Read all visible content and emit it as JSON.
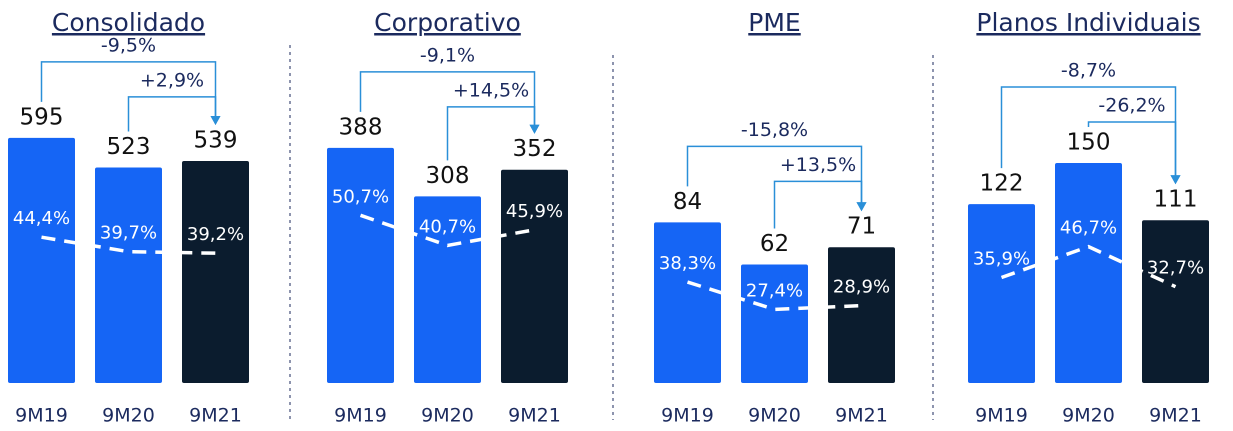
{
  "chart_data": [
    {
      "type": "bar",
      "title": "Consolidado",
      "categories": [
        "9M19",
        "9M20",
        "9M21"
      ],
      "series": [
        {
          "colors": [
            "#1565f5",
            "#1565f5",
            "#0b1c2e"
          ],
          "values": [
            595,
            523,
            539
          ]
        },
        {
          "type": "line",
          "axis": "y2",
          "color": "#ffffff",
          "values": [
            44.4,
            39.7,
            39.2
          ],
          "value_labels": [
            "44,4%",
            "39,7%",
            "39,2%"
          ]
        }
      ],
      "annotations": [
        "-9,5%",
        "+2,9%"
      ],
      "ylim": [
        0,
        687
      ],
      "y2lim": [
        -3,
        89
      ]
    },
    {
      "type": "bar",
      "title": "Corporativo",
      "categories": [
        "9M19",
        "9M20",
        "9M21"
      ],
      "series": [
        {
          "colors": [
            "#1565f5",
            "#1565f5",
            "#0b1c2e"
          ],
          "values": [
            388,
            308,
            352
          ]
        },
        {
          "type": "line",
          "axis": "y2",
          "color": "#ffffff",
          "values": [
            50.7,
            40.7,
            45.9
          ],
          "value_labels": [
            "50,7%",
            "40,7%",
            "45,9%"
          ]
        }
      ],
      "annotations": [
        "-9,1%",
        "+14,5%"
      ],
      "ylim": [
        0,
        467
      ],
      "y2lim": [
        -5,
        89
      ]
    },
    {
      "type": "bar",
      "title": "PME",
      "categories": [
        "9M19",
        "9M20",
        "9M21"
      ],
      "series": [
        {
          "colors": [
            "#1565f5",
            "#1565f5",
            "#0b1c2e"
          ],
          "values": [
            84,
            62,
            71
          ]
        },
        {
          "type": "line",
          "axis": "y2",
          "color": "#ffffff",
          "values": [
            38.3,
            27.4,
            28.9
          ],
          "value_labels": [
            "38,3%",
            "27,4%",
            "28,9%"
          ]
        }
      ],
      "annotations": [
        "-15,8%",
        "+13,5%"
      ],
      "ylim": [
        0,
        148
      ],
      "y2lim": [
        -2,
        111
      ]
    },
    {
      "type": "bar",
      "title": "Planos Individuais",
      "categories": [
        "9M19",
        "9M20",
        "9M21"
      ],
      "series": [
        {
          "colors": [
            "#1565f5",
            "#1565f5",
            "#0b1c2e"
          ],
          "values": [
            122,
            150,
            111
          ]
        },
        {
          "type": "line",
          "axis": "y2",
          "color": "#ffffff",
          "values": [
            35.9,
            46.7,
            32.7
          ],
          "value_labels": [
            "35,9%",
            "46,7%",
            "32,7%"
          ]
        }
      ],
      "annotations": [
        "-8,7%",
        "-26,2%"
      ],
      "ylim": [
        0,
        193
      ],
      "y2lim": [
        -1,
        98
      ]
    }
  ]
}
